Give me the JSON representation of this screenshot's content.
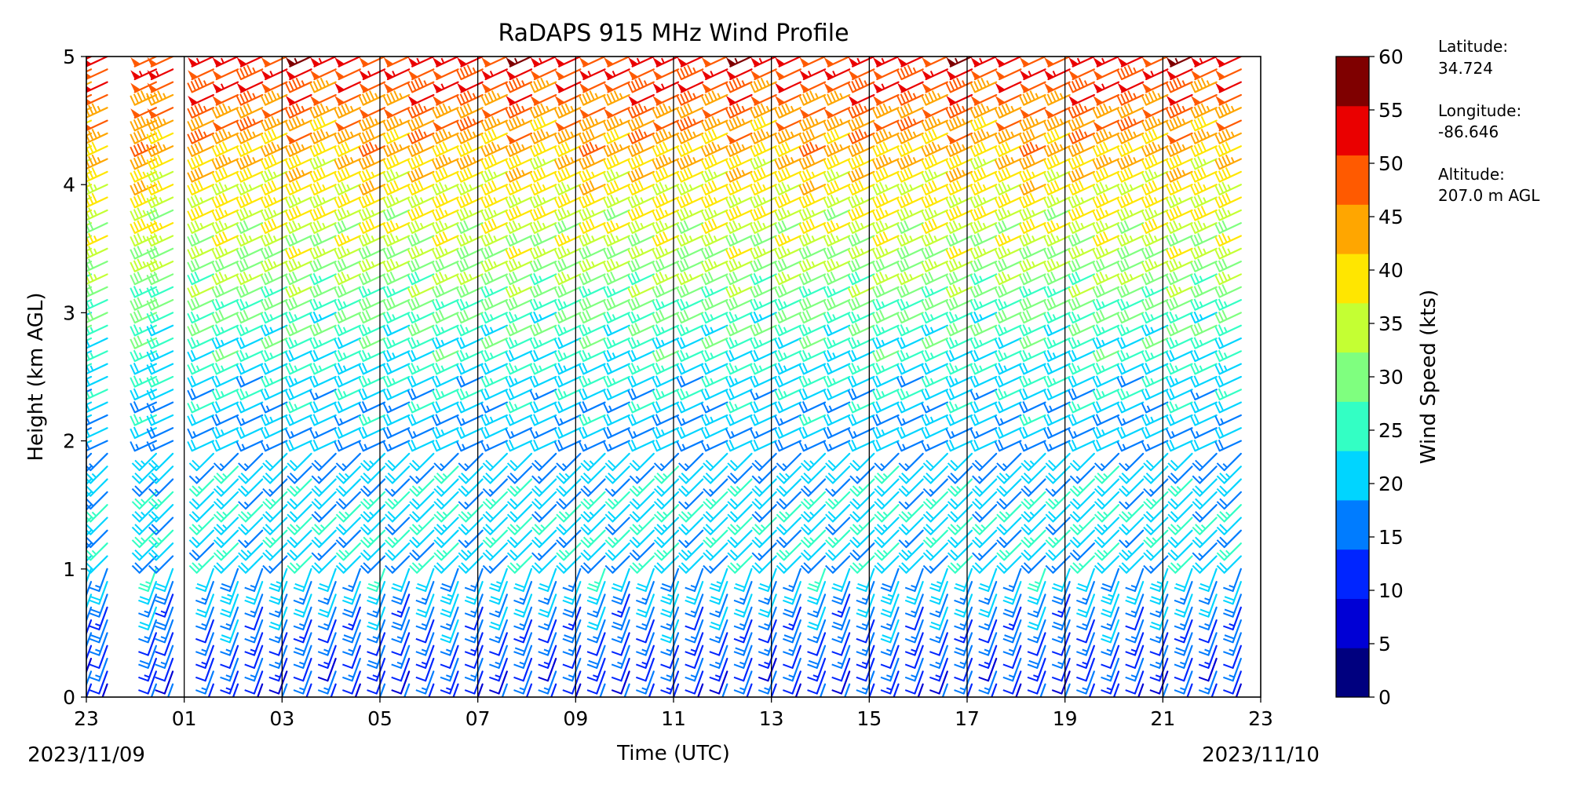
{
  "chart_data": {
    "type": "wind_barbs",
    "title": "RaDAPS 915 MHz Wind Profile",
    "xlabel": "Time (UTC)",
    "ylabel": "Height (km AGL)",
    "x_ticks": [
      "23",
      "01",
      "03",
      "05",
      "07",
      "09",
      "11",
      "13",
      "15",
      "17",
      "19",
      "21",
      "23"
    ],
    "y_ticks": [
      "0",
      "1",
      "2",
      "3",
      "4",
      "5"
    ],
    "ylim": [
      0,
      5
    ],
    "date_start": "2023/11/09",
    "date_end": "2023/11/10",
    "colorbar": {
      "label": "Wind Speed (kts)",
      "ticks": [
        "0",
        "5",
        "10",
        "15",
        "20",
        "25",
        "30",
        "35",
        "40",
        "45",
        "50",
        "55",
        "60"
      ],
      "colors": [
        "#00007f",
        "#0000d5",
        "#0025ff",
        "#007cff",
        "#00d5ff",
        "#33ffc4",
        "#7fff7f",
        "#c4ff33",
        "#ffe600",
        "#ffa600",
        "#ff5a00",
        "#ea0000",
        "#7f0000"
      ]
    },
    "info": {
      "lat_label": "Latitude:",
      "lat_value": "34.724",
      "lon_label": "Longitude:",
      "lon_value": "-86.646",
      "alt_label": "Altitude:",
      "alt_value": "207.0 m AGL"
    },
    "profile_times_hours": [
      23.0,
      23.33,
      0.33,
      0.67,
      1.5,
      2.0,
      2.5,
      3.0,
      3.5,
      4.0,
      4.5,
      5.0,
      5.5,
      6.0,
      6.5,
      7.0,
      7.5,
      8.0,
      8.5,
      9.0,
      9.5,
      10.0,
      10.5,
      11.0,
      11.5,
      12.0,
      12.5,
      13.0,
      13.5,
      14.0,
      14.5,
      15.0,
      15.5,
      16.0,
      16.5,
      17.0,
      17.5,
      18.0,
      18.5,
      19.0,
      19.5,
      20.0,
      20.5,
      21.0,
      21.5,
      22.0,
      22.5
    ],
    "speed_profile_kts": [
      {
        "height_km": 0.2,
        "speed": 12
      },
      {
        "height_km": 0.6,
        "speed": 15
      },
      {
        "height_km": 1.0,
        "speed": 20
      },
      {
        "height_km": 1.5,
        "speed": 22
      },
      {
        "height_km": 2.0,
        "speed": 18
      },
      {
        "height_km": 2.5,
        "speed": 22
      },
      {
        "height_km": 3.0,
        "speed": 27
      },
      {
        "height_km": 3.5,
        "speed": 33
      },
      {
        "height_km": 4.0,
        "speed": 38
      },
      {
        "height_km": 4.5,
        "speed": 45
      },
      {
        "height_km": 5.0,
        "speed": 52
      }
    ]
  }
}
